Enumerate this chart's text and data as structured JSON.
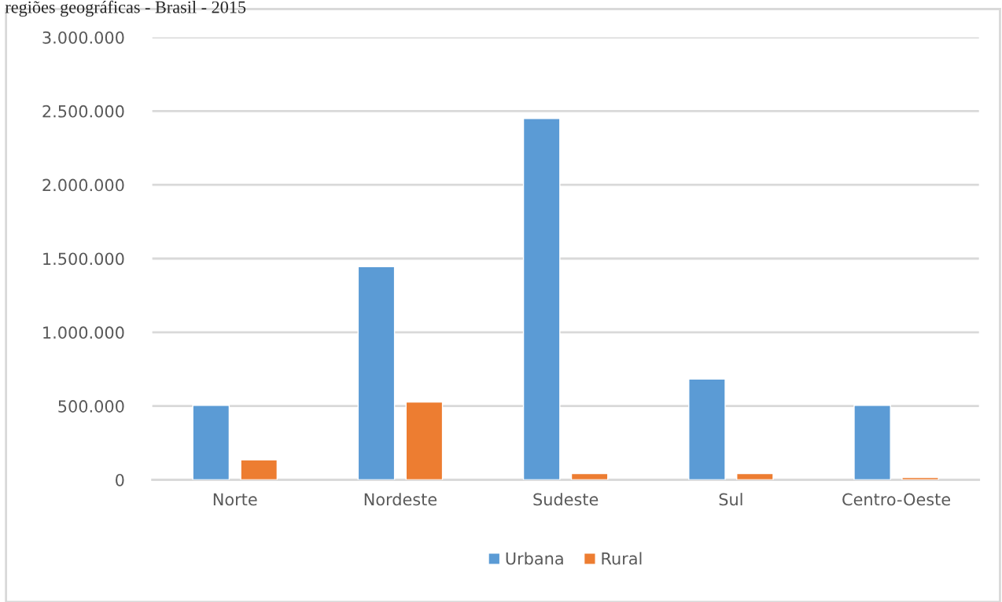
{
  "chart_data": {
    "type": "bar",
    "title": "regiões geográficas - Brasil - 2015",
    "categories": [
      "Norte",
      "Nordeste",
      "Sudeste",
      "Sul",
      "Centro-Oeste"
    ],
    "series": [
      {
        "name": "Urbana",
        "color": "#5b9bd5",
        "values": [
          505000,
          1445000,
          2450000,
          683000,
          505000
        ]
      },
      {
        "name": "Rural",
        "color": "#ed7d31",
        "values": [
          135000,
          527000,
          43000,
          43000,
          16000
        ]
      }
    ],
    "ylim": [
      0,
      3000000
    ],
    "yticks": [
      {
        "value": 0,
        "label": "0"
      },
      {
        "value": 500000,
        "label": "500.000"
      },
      {
        "value": 1000000,
        "label": "1.000.000"
      },
      {
        "value": 1500000,
        "label": "1.500.000"
      },
      {
        "value": 2000000,
        "label": "2.000.000"
      },
      {
        "value": 2500000,
        "label": "2.500.000"
      },
      {
        "value": 3000000,
        "label": "3.000.000"
      }
    ],
    "grid": "y",
    "legend": "bottom"
  }
}
